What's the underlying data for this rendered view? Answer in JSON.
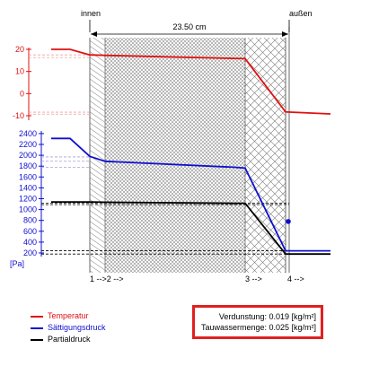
{
  "chart_data": {
    "type": "line",
    "wall": {
      "inside_label": "innen",
      "outside_label": "außen",
      "thickness_label": "23.50 cm",
      "layer_markers": [
        "1 -->2 -->",
        "3 -->",
        "4 -->"
      ]
    },
    "temperature_axis": {
      "ticks": [
        20,
        10,
        0,
        -10
      ],
      "ylim": [
        -10,
        20
      ]
    },
    "pressure_axis": {
      "ticks": [
        2400,
        2200,
        2000,
        1800,
        1600,
        1400,
        1200,
        1000,
        800,
        600,
        400,
        200
      ],
      "unit": "[Pa]",
      "ylim": [
        100,
        2400
      ]
    },
    "series": [
      {
        "name": "Temperatur",
        "axis": "temperature",
        "color": "#e01010",
        "points": [
          [
            0,
            20.0
          ],
          [
            1,
            20.0
          ],
          [
            2,
            17.5
          ],
          [
            3,
            17.3
          ],
          [
            4,
            15.9
          ],
          [
            5,
            15.8
          ],
          [
            6,
            -8.3
          ],
          [
            7,
            -9.2
          ]
        ]
      },
      {
        "name": "Sättigungsdruck",
        "axis": "pressure",
        "color": "#1010d0",
        "points": [
          [
            0,
            2310
          ],
          [
            1,
            2310
          ],
          [
            2,
            1980
          ],
          [
            3,
            1890
          ],
          [
            4,
            1780
          ],
          [
            5,
            1765
          ],
          [
            6,
            240
          ],
          [
            7,
            240
          ]
        ]
      },
      {
        "name": "Partialdruck",
        "axis": "pressure",
        "color": "#000000",
        "points": [
          [
            0,
            1140
          ],
          [
            1,
            1140
          ],
          [
            2,
            1140
          ],
          [
            3,
            1135
          ],
          [
            4,
            1115
          ],
          [
            5,
            1115
          ],
          [
            6,
            180
          ],
          [
            7,
            180
          ]
        ]
      }
    ],
    "reference_lines": {
      "temperature": [
        17.5,
        16.3,
        -8.4,
        -9.3
      ],
      "pressure": [
        1970,
        1890,
        1780,
        1120,
        1090,
        240,
        180
      ]
    },
    "dot": {
      "color": "#1010d0",
      "pressure": 780
    },
    "legend_position": "bottom-left"
  },
  "summary": {
    "evaporation": "Verdunstung: 0.019 [kg/m²]",
    "condensation": "Tauwassermenge: 0.025 [kg/m²]"
  }
}
